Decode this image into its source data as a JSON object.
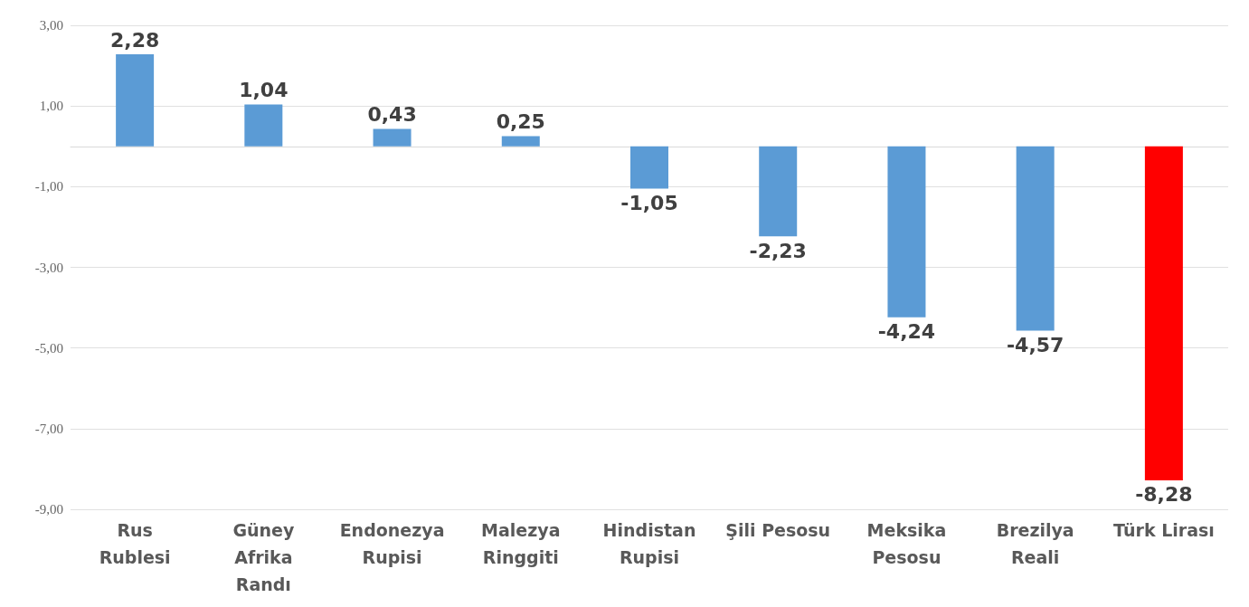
{
  "chart_data": {
    "type": "bar",
    "categories": [
      "Rus\nRublesi",
      "Güney\nAfrika\nRandı",
      "Endonezya\nRupisi",
      "Malezya\nRinggiti",
      "Hindistan\nRupisi",
      "Şili Pesosu",
      "Meksika\nPesosu",
      "Brezilya\nReali",
      "Türk Lirası"
    ],
    "values": [
      2.28,
      1.04,
      0.43,
      0.25,
      -1.05,
      -2.23,
      -4.24,
      -4.57,
      -8.28
    ],
    "value_labels": [
      "2,28",
      "1,04",
      "0,43",
      "0,25",
      "-1,05",
      "-2,23",
      "-4,24",
      "-4,57",
      "-8,28"
    ],
    "colors": [
      "#5b9bd5",
      "#5b9bd5",
      "#5b9bd5",
      "#5b9bd5",
      "#5b9bd5",
      "#5b9bd5",
      "#5b9bd5",
      "#5b9bd5",
      "#ff0000"
    ],
    "ylim": [
      -9,
      3
    ],
    "yticks": [
      {
        "value": 3,
        "label": "3,00"
      },
      {
        "value": 1,
        "label": "1,00"
      },
      {
        "value": -1,
        "label": "-1,00"
      },
      {
        "value": -3,
        "label": "-3,00"
      },
      {
        "value": -5,
        "label": "-5,00"
      },
      {
        "value": -7,
        "label": "-7,00"
      },
      {
        "value": -9,
        "label": "-9,00"
      }
    ],
    "grid": "y"
  }
}
